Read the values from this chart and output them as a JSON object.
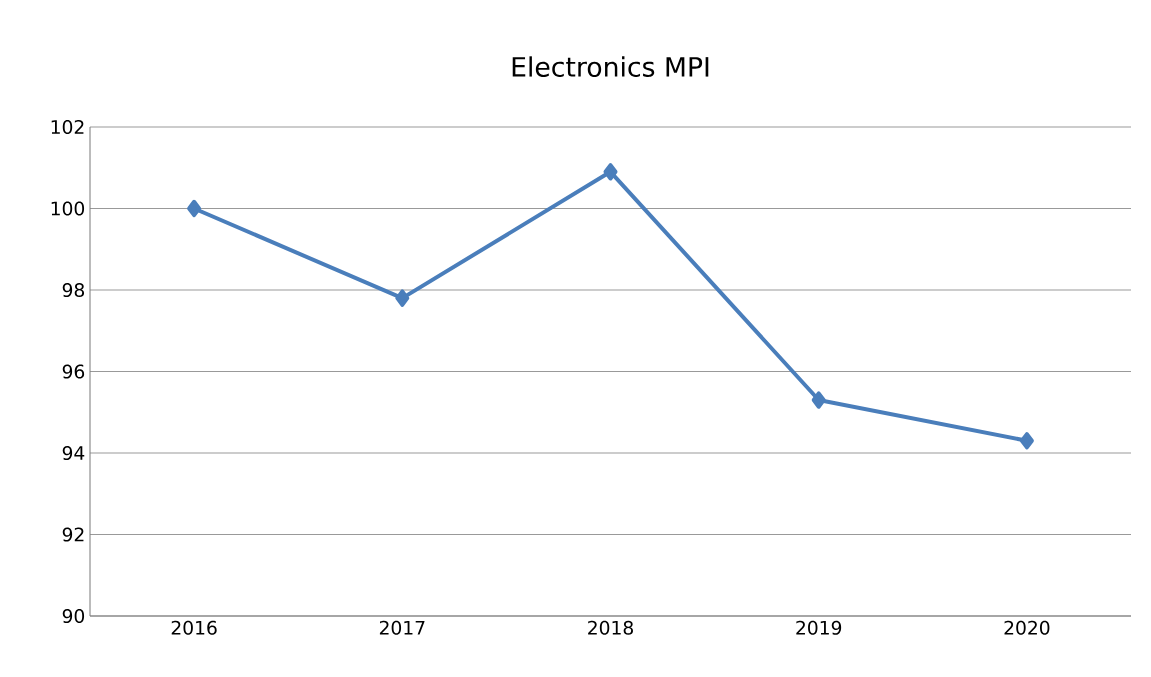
{
  "chart_data": {
    "type": "line",
    "title": "Electronics MPI",
    "categories": [
      "2016",
      "2017",
      "2018",
      "2019",
      "2020"
    ],
    "series": [
      {
        "color": "#4a7ebb",
        "values": [
          100,
          97.8,
          100.9,
          95.3,
          94.3
        ]
      }
    ],
    "ylim": [
      90,
      102
    ],
    "yticks": [
      90,
      92,
      94,
      96,
      98,
      100,
      102
    ],
    "grid": "y",
    "marker": "diamond",
    "line_style": "solid"
  }
}
